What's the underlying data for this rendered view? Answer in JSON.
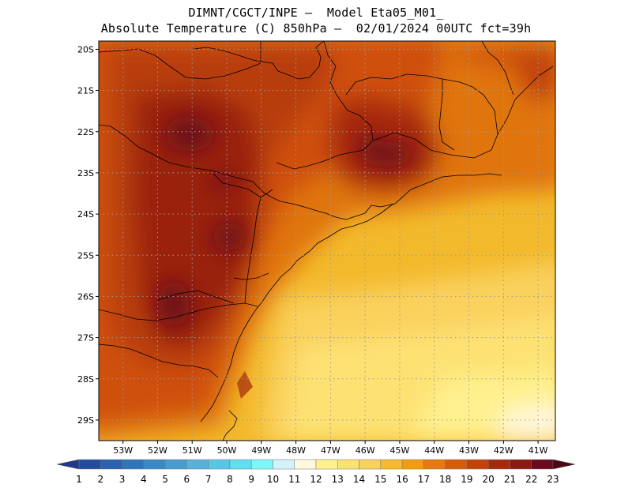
{
  "title": {
    "line1": "DIMNT/CGCT/INPE —  Model Eta05_M01_",
    "line2": "Absolute Temperature (C) 850hPa —  02/01/2024 00UTC fct=39h"
  },
  "map": {
    "lon_range": [
      -53.7,
      -40.5
    ],
    "lat_range": [
      -29.5,
      -19.8
    ],
    "lat_labels": [
      "20S",
      "21S",
      "22S",
      "23S",
      "24S",
      "25S",
      "26S",
      "27S",
      "28S",
      "29S"
    ],
    "lon_labels": [
      "53W",
      "52W",
      "51W",
      "50W",
      "49W",
      "48W",
      "47W",
      "46W",
      "45W",
      "44W",
      "43W",
      "42W",
      "41W"
    ],
    "grid": "dotted"
  },
  "colorbar": {
    "labels": [
      "1",
      "2",
      "3",
      "4",
      "5",
      "6",
      "7",
      "8",
      "9",
      "10",
      "11",
      "12",
      "13",
      "14",
      "15",
      "16",
      "17",
      "18",
      "19",
      "20",
      "21",
      "22",
      "23"
    ],
    "colors": [
      "#1e3a8a",
      "#224d9c",
      "#2a62ad",
      "#3075b8",
      "#3b89c4",
      "#4a9ccf",
      "#5bb0da",
      "#5ac6e6",
      "#63def0",
      "#7df7fb",
      "#d3f3fb",
      "#fff8de",
      "#fff18f",
      "#fde273",
      "#fad15d",
      "#f7b92f",
      "#f29c12",
      "#e8790e",
      "#d95b07",
      "#c2420a",
      "#a52a0c",
      "#8b1a12",
      "#6b0a1d",
      "#4d0614"
    ]
  }
}
